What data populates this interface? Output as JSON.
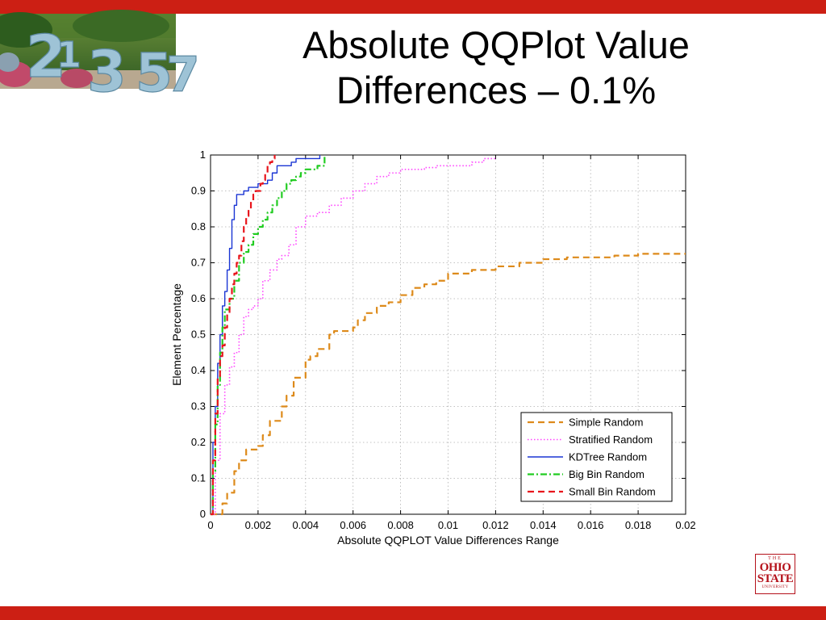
{
  "slide": {
    "title_line1": "Absolute QQPlot Value",
    "title_line2": "Differences – 0.1%",
    "accent_color": "#cc1f14",
    "photo_numbers": [
      "2",
      "1",
      "3",
      "5",
      "7"
    ]
  },
  "logo": {
    "line_the": "THE",
    "line_ohio": "OHIO",
    "line_state": "STATE",
    "line_university": "UNIVERSITY",
    "color": "#b5121b"
  },
  "chart_data": {
    "type": "line",
    "title": "",
    "xlabel": "Absolute QQPLOT Value Differences Range",
    "ylabel": "Element Percentage",
    "xlim": [
      0,
      0.02
    ],
    "ylim": [
      0,
      1
    ],
    "xticks": [
      0,
      0.002,
      0.004,
      0.006,
      0.008,
      0.01,
      0.012,
      0.014,
      0.016,
      0.018,
      0.02
    ],
    "xtick_labels": [
      "0",
      "0.002",
      "0.004",
      "0.006",
      "0.008",
      "0.01",
      "0.012",
      "0.014",
      "0.016",
      "0.018",
      "0.02"
    ],
    "yticks": [
      0,
      0.1,
      0.2,
      0.3,
      0.4,
      0.5,
      0.6,
      0.7,
      0.8,
      0.9,
      1
    ],
    "ytick_labels": [
      "0",
      "0.1",
      "0.2",
      "0.3",
      "0.4",
      "0.5",
      "0.6",
      "0.7",
      "0.8",
      "0.9",
      "1"
    ],
    "grid": true,
    "legend_position": "bottom-right",
    "series": [
      {
        "name": "Simple Random",
        "color": "#dd8a1a",
        "dash": "dashed",
        "x": [
          0,
          0.0005,
          0.0007,
          0.001,
          0.0012,
          0.0015,
          0.002,
          0.0022,
          0.0025,
          0.003,
          0.0032,
          0.0035,
          0.004,
          0.0042,
          0.0045,
          0.005,
          0.0052,
          0.0055,
          0.006,
          0.0062,
          0.0065,
          0.007,
          0.0075,
          0.008,
          0.0085,
          0.009,
          0.0095,
          0.01,
          0.011,
          0.012,
          0.013,
          0.014,
          0.015,
          0.016,
          0.017,
          0.018,
          0.019,
          0.02
        ],
        "y": [
          0,
          0.03,
          0.06,
          0.12,
          0.15,
          0.18,
          0.19,
          0.22,
          0.26,
          0.3,
          0.33,
          0.38,
          0.43,
          0.44,
          0.46,
          0.5,
          0.51,
          0.51,
          0.52,
          0.54,
          0.56,
          0.58,
          0.59,
          0.61,
          0.63,
          0.64,
          0.65,
          0.67,
          0.68,
          0.69,
          0.7,
          0.71,
          0.715,
          0.715,
          0.72,
          0.725,
          0.725,
          0.725
        ]
      },
      {
        "name": "Stratified Random",
        "color": "#ff44ff",
        "dash": "dotted",
        "x": [
          0,
          0.0002,
          0.0004,
          0.0006,
          0.0008,
          0.001,
          0.0012,
          0.0014,
          0.0016,
          0.0018,
          0.002,
          0.0022,
          0.0025,
          0.0028,
          0.003,
          0.0033,
          0.0036,
          0.004,
          0.0045,
          0.005,
          0.0055,
          0.006,
          0.0065,
          0.007,
          0.0075,
          0.008,
          0.0085,
          0.009,
          0.0095,
          0.01,
          0.011,
          0.0115,
          0.012
        ],
        "y": [
          0,
          0.15,
          0.28,
          0.36,
          0.41,
          0.45,
          0.5,
          0.55,
          0.57,
          0.58,
          0.6,
          0.65,
          0.68,
          0.71,
          0.72,
          0.75,
          0.8,
          0.83,
          0.84,
          0.86,
          0.88,
          0.9,
          0.92,
          0.94,
          0.95,
          0.96,
          0.96,
          0.965,
          0.97,
          0.97,
          0.98,
          0.99,
          0.99
        ]
      },
      {
        "name": "KDTree Random",
        "color": "#1a35d4",
        "dash": "solid",
        "x": [
          0,
          0.0001,
          0.0002,
          0.0003,
          0.0004,
          0.0005,
          0.0006,
          0.0007,
          0.0008,
          0.0009,
          0.001,
          0.0011,
          0.0012,
          0.0014,
          0.0016,
          0.0018,
          0.002,
          0.0022,
          0.0024,
          0.0026,
          0.0028,
          0.003,
          0.0032,
          0.0034,
          0.0036,
          0.004,
          0.0044,
          0.0046
        ],
        "y": [
          0,
          0.2,
          0.3,
          0.42,
          0.5,
          0.58,
          0.62,
          0.68,
          0.74,
          0.82,
          0.86,
          0.89,
          0.89,
          0.9,
          0.91,
          0.91,
          0.92,
          0.92,
          0.93,
          0.95,
          0.97,
          0.97,
          0.97,
          0.98,
          0.99,
          0.99,
          0.99,
          1.0
        ]
      },
      {
        "name": "Big Bin Random",
        "color": "#22cc22",
        "dash": "dashdot",
        "x": [
          0,
          0.0001,
          0.0002,
          0.0003,
          0.0004,
          0.0005,
          0.0006,
          0.0008,
          0.001,
          0.0012,
          0.0014,
          0.0016,
          0.0018,
          0.002,
          0.0022,
          0.0024,
          0.0026,
          0.0028,
          0.003,
          0.0032,
          0.0034,
          0.0036,
          0.0038,
          0.004,
          0.0042,
          0.0045,
          0.0048
        ],
        "y": [
          0,
          0.12,
          0.25,
          0.36,
          0.45,
          0.52,
          0.57,
          0.6,
          0.65,
          0.7,
          0.73,
          0.75,
          0.78,
          0.8,
          0.82,
          0.84,
          0.86,
          0.88,
          0.9,
          0.92,
          0.93,
          0.94,
          0.95,
          0.96,
          0.96,
          0.97,
          1.0
        ]
      },
      {
        "name": "Small Bin Random",
        "color": "#e8151c",
        "dash": "dashed",
        "x": [
          0,
          0.0001,
          0.0002,
          0.0003,
          0.0004,
          0.0005,
          0.0006,
          0.0007,
          0.0008,
          0.0009,
          0.001,
          0.0011,
          0.0012,
          0.0013,
          0.0014,
          0.0015,
          0.0016,
          0.0017,
          0.0018,
          0.0019,
          0.002,
          0.0021,
          0.0022,
          0.0023,
          0.0024,
          0.0025,
          0.0026,
          0.0027
        ],
        "y": [
          0,
          0.15,
          0.28,
          0.38,
          0.44,
          0.47,
          0.52,
          0.56,
          0.6,
          0.64,
          0.67,
          0.7,
          0.72,
          0.76,
          0.8,
          0.83,
          0.85,
          0.87,
          0.89,
          0.9,
          0.9,
          0.92,
          0.93,
          0.95,
          0.97,
          0.98,
          0.99,
          1.0
        ]
      }
    ]
  }
}
